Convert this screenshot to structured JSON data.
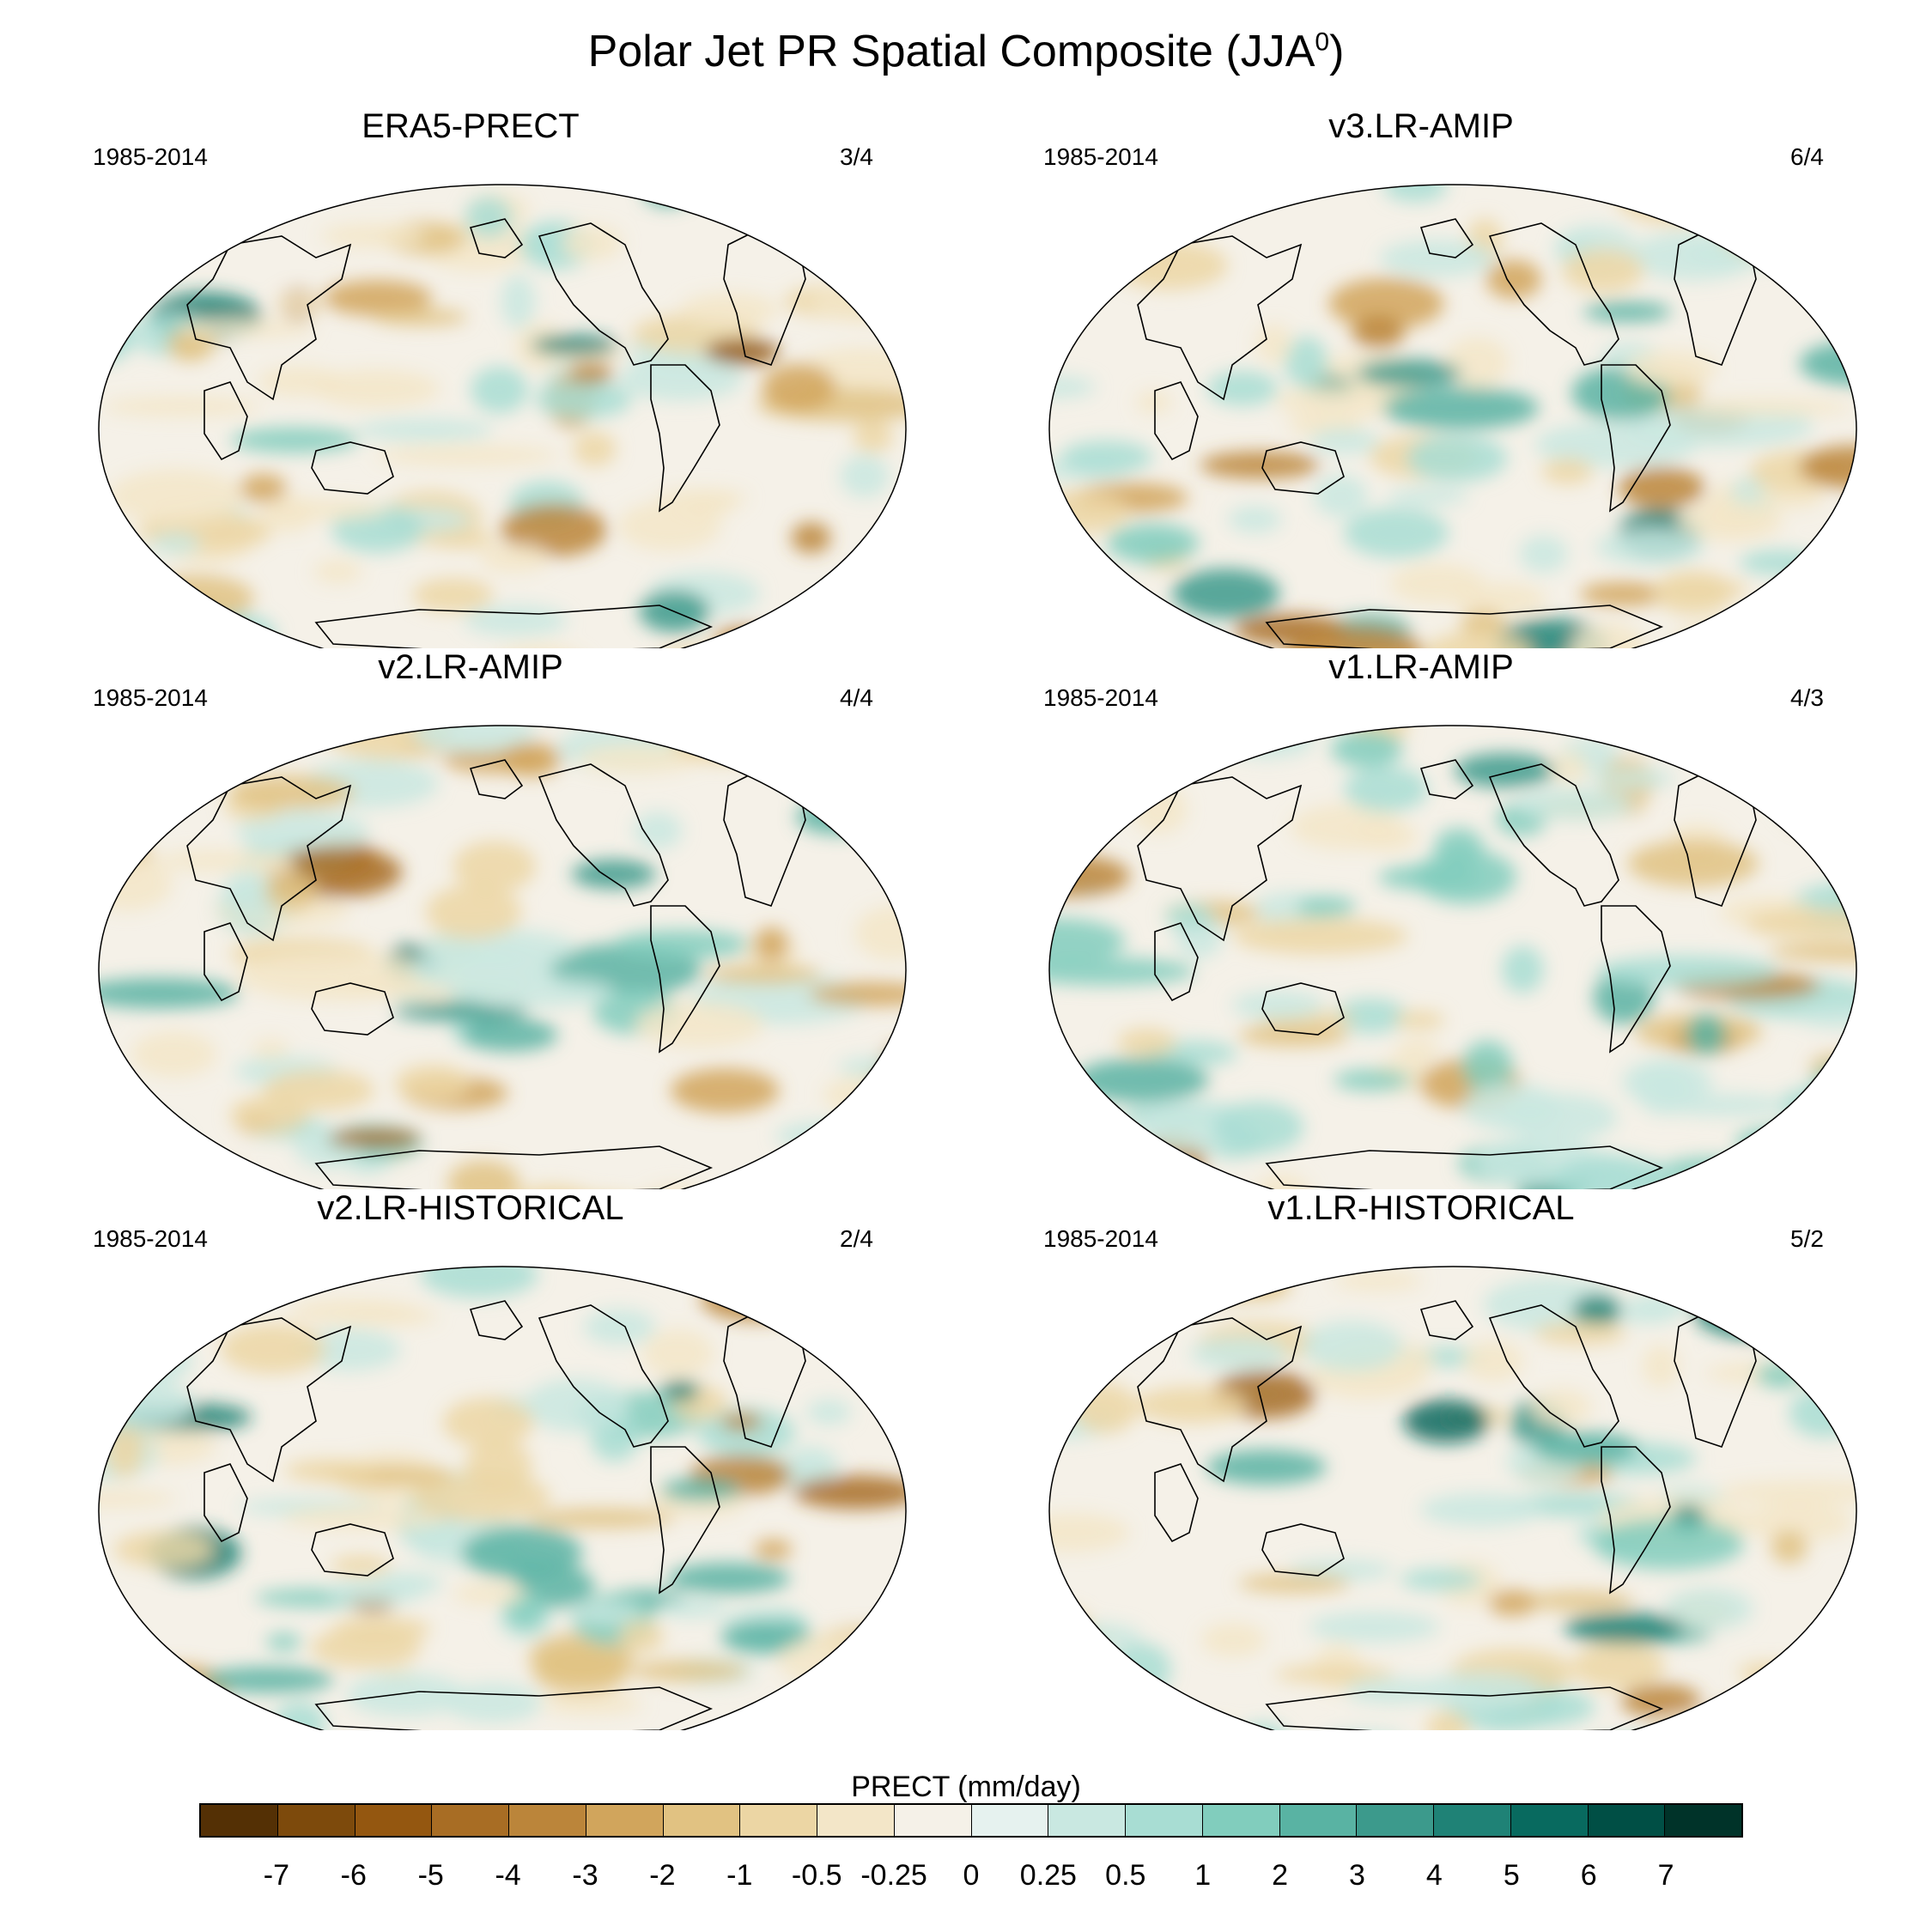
{
  "title": {
    "text": "Polar Jet PR Spatial Composite (JJA",
    "sup": "0",
    "close": ")"
  },
  "panels": [
    {
      "title": "ERA5-PRECT",
      "period": "1985-2014",
      "ratio": "3/4"
    },
    {
      "title": "v3.LR-AMIP",
      "period": "1985-2014",
      "ratio": "6/4"
    },
    {
      "title": "v2.LR-AMIP",
      "period": "1985-2014",
      "ratio": "4/4"
    },
    {
      "title": "v1.LR-AMIP",
      "period": "1985-2014",
      "ratio": "4/3"
    },
    {
      "title": "v2.LR-HISTORICAL",
      "period": "1985-2014",
      "ratio": "2/4"
    },
    {
      "title": "v1.LR-HISTORICAL",
      "period": "1985-2014",
      "ratio": "5/2"
    }
  ],
  "colorbar": {
    "label": "PRECT (mm/day)",
    "ticks": [
      "-7",
      "-6",
      "-5",
      "-4",
      "-3",
      "-2",
      "-1",
      "-0.5",
      "-0.25",
      "0",
      "0.25",
      "0.5",
      "1",
      "2",
      "3",
      "4",
      "5",
      "6",
      "7"
    ],
    "colors": [
      "#543005",
      "#7d4a0c",
      "#945710",
      "#a86d24",
      "#bb853a",
      "#d1a55c",
      "#e1c282",
      "#ecd6a4",
      "#f3e6c8",
      "#f5f1e8",
      "#e6f2ef",
      "#c9e8e1",
      "#a8ddd3",
      "#81cdbd",
      "#59b3a3",
      "#3c9a8c",
      "#1f8276",
      "#086a5f",
      "#004f45",
      "#003329"
    ]
  }
}
